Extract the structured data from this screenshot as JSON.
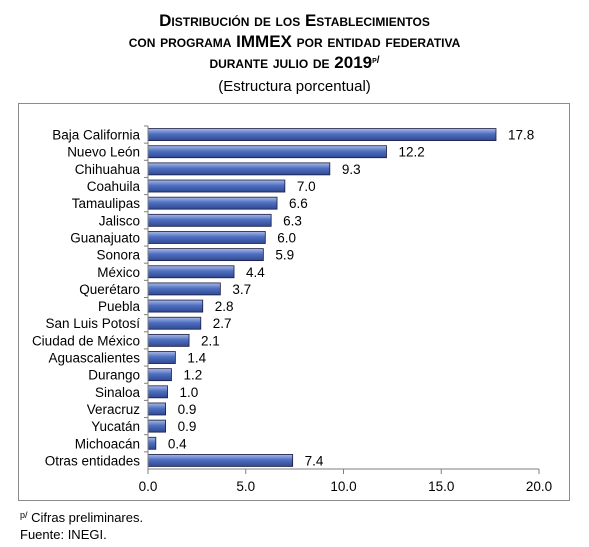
{
  "title": {
    "line1": "Distribución de los Establecimientos",
    "line2": "con programa IMMEX por entidad federativa",
    "line3": "durante julio de 2019",
    "line3_sup": "p/"
  },
  "subtitle": "(Estructura porcentual)",
  "notes": {
    "preliminary_sup": "p/",
    "preliminary": " Cifras preliminares.",
    "source": "Fuente: INEGI."
  },
  "colors": {
    "bar": "#4f6fc0",
    "bar_stroke": "#1a1a40",
    "axis": "#7f7f7f"
  },
  "chart_data": {
    "type": "bar",
    "orientation": "horizontal",
    "categories": [
      "Baja California",
      "Nuevo León",
      "Chihuahua",
      "Coahuila",
      "Tamaulipas",
      "Jalisco",
      "Guanajuato",
      "Sonora",
      "México",
      "Querétaro",
      "Puebla",
      "San Luis Potosí",
      "Ciudad de México",
      "Aguascalientes",
      "Durango",
      "Sinaloa",
      "Veracruz",
      "Yucatán",
      "Michoacán",
      "Otras entidades"
    ],
    "values": [
      17.8,
      12.2,
      9.3,
      7.0,
      6.6,
      6.3,
      6.0,
      5.9,
      4.4,
      3.7,
      2.8,
      2.7,
      2.1,
      1.4,
      1.2,
      1.0,
      0.9,
      0.9,
      0.4,
      7.4
    ],
    "value_labels": [
      "17.8",
      "12.2",
      "9.3",
      "7.0",
      "6.6",
      "6.3",
      "6.0",
      "5.9",
      "4.4",
      "3.7",
      "2.8",
      "2.7",
      "2.1",
      "1.4",
      "1.2",
      "1.0",
      "0.9",
      "0.9",
      "0.4",
      "7.4"
    ],
    "xlim": [
      0,
      20
    ],
    "xticks": [
      0,
      5,
      10,
      15,
      20
    ],
    "xtick_labels": [
      "0.0",
      "5.0",
      "10.0",
      "15.0",
      "20.0"
    ],
    "grid": false,
    "legend": false
  }
}
